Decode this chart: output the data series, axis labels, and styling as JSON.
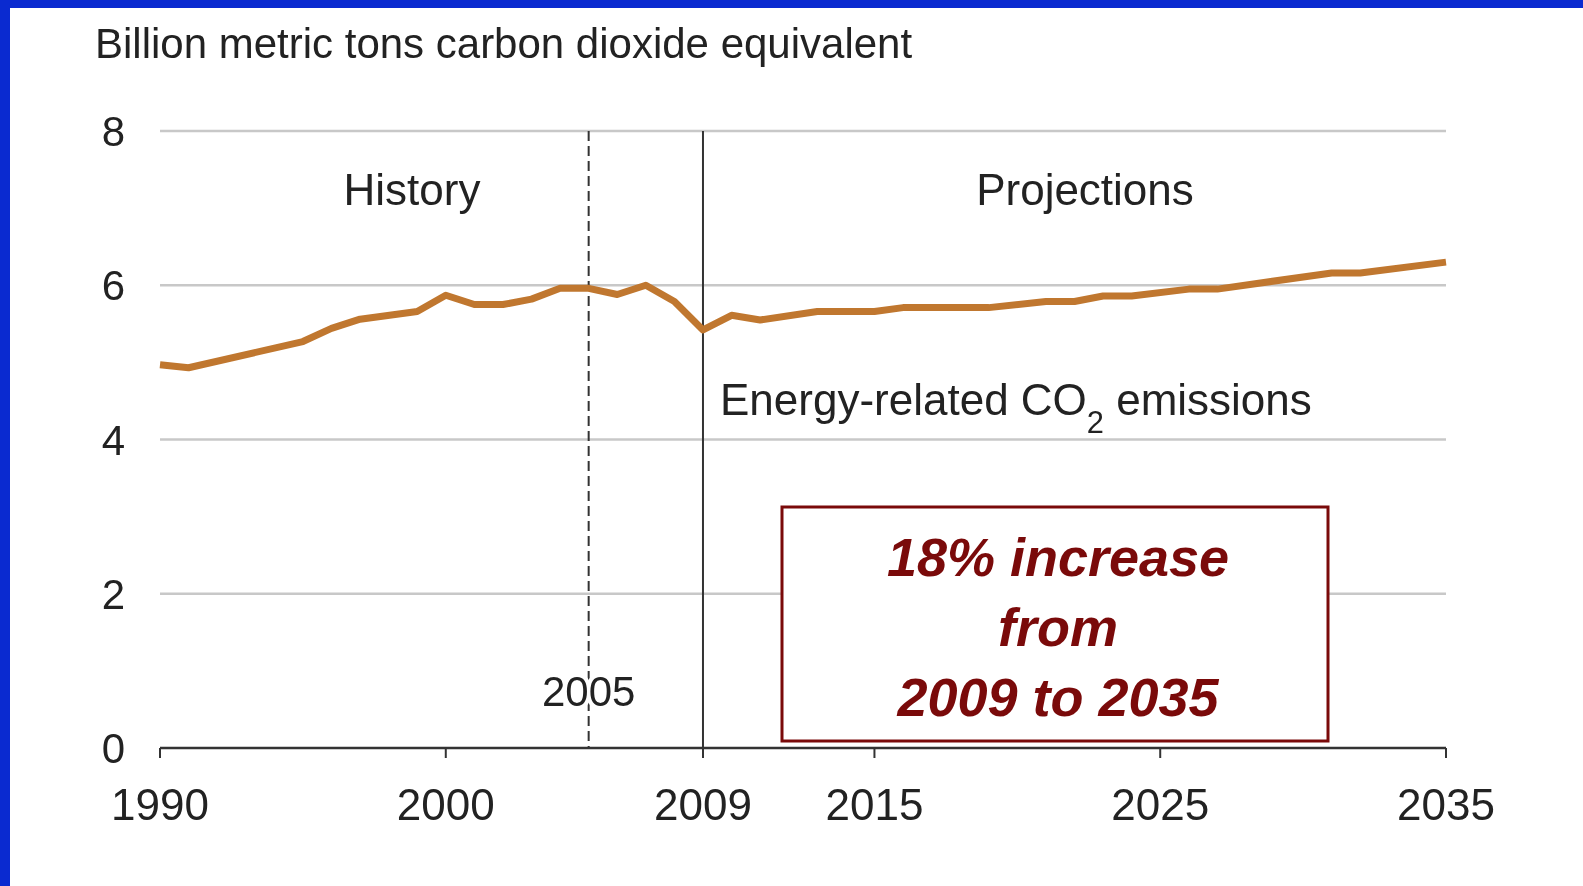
{
  "chart_data": {
    "type": "line",
    "ylabel": "Billion metric tons carbon dioxide equivalent",
    "x": [
      1990,
      1991,
      1995,
      1996,
      1997,
      1999,
      2000,
      2001,
      2002,
      2003,
      2004,
      2005,
      2006,
      2007,
      2008,
      2009,
      2010,
      2011,
      2013,
      2015,
      2016,
      2019,
      2021,
      2022,
      2023,
      2024,
      2026,
      2027,
      2031,
      2032,
      2035
    ],
    "series": [
      {
        "color": "#c0772f",
        "values": [
          4.97,
          4.93,
          5.27,
          5.44,
          5.56,
          5.66,
          5.87,
          5.75,
          5.75,
          5.82,
          5.96,
          5.96,
          5.88,
          6.0,
          5.79,
          5.42,
          5.61,
          5.55,
          5.66,
          5.66,
          5.71,
          5.71,
          5.79,
          5.79,
          5.86,
          5.86,
          5.95,
          5.95,
          6.16,
          6.16,
          6.3
        ]
      }
    ],
    "xlim": [
      1990,
      2035
    ],
    "xticks": [
      1990,
      2000,
      2009,
      2015,
      2025,
      2035
    ],
    "ylim": [
      0,
      8
    ],
    "yticks": [
      0,
      2,
      4,
      6,
      8
    ],
    "grid": "y",
    "marker": "none",
    "line_style": "solid",
    "ref_lines": [
      {
        "axis": "x",
        "value": 2005,
        "label": "2005",
        "line_style": "dashed",
        "color": "#333333"
      },
      {
        "axis": "x",
        "value": 2009,
        "line_style": "solid",
        "color": "#333333"
      }
    ],
    "annotations": [
      "History",
      "Projections",
      "Energy-related CO$_{2}$ emissions",
      "18% increase\nfrom\n2009 to 2035"
    ]
  }
}
